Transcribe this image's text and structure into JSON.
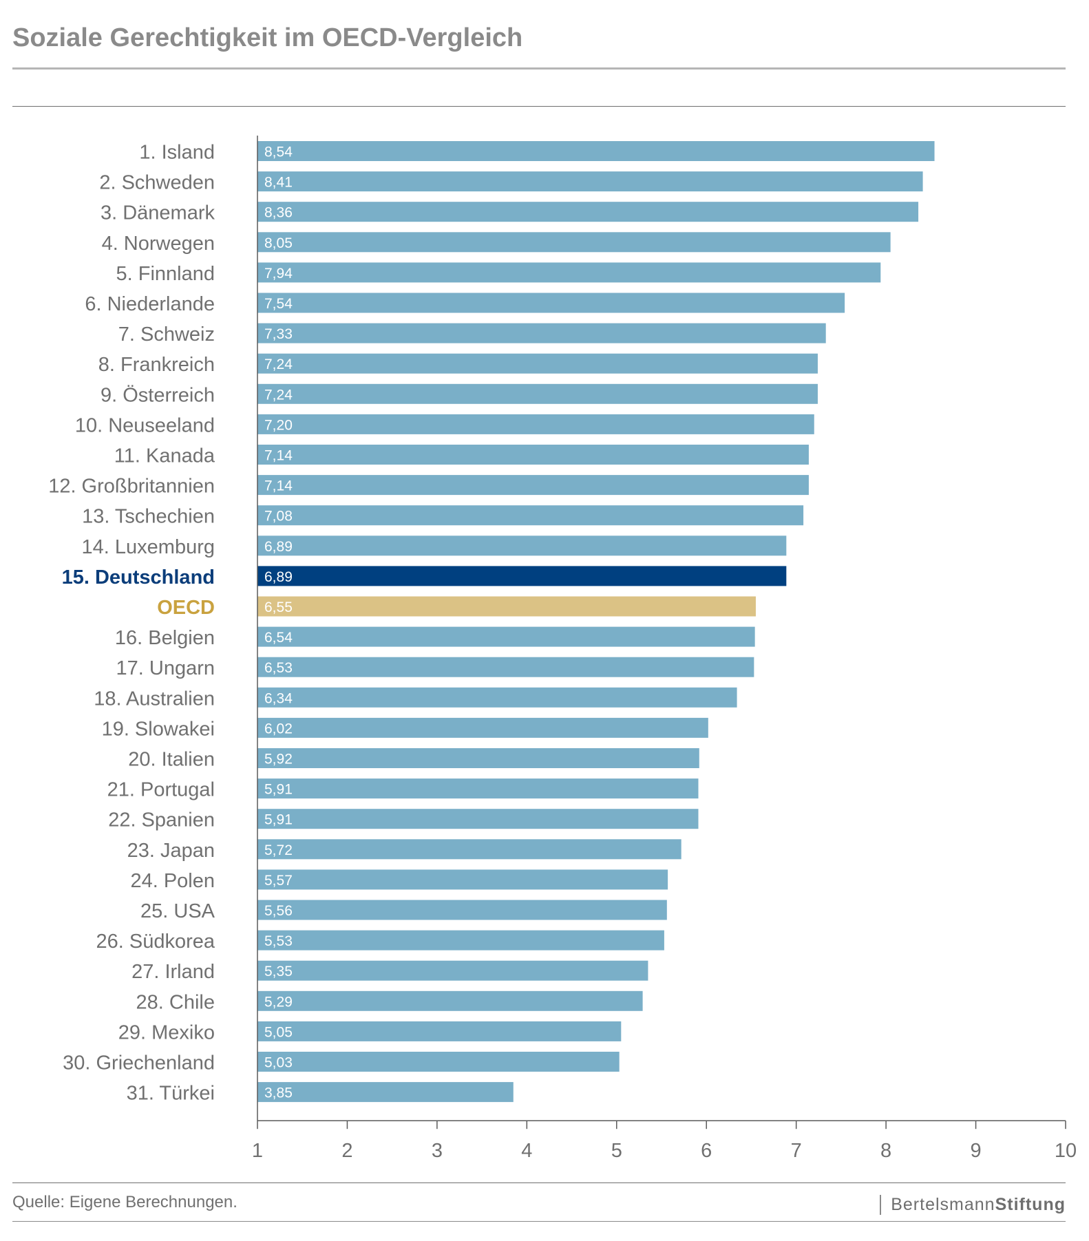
{
  "header": {
    "title": "Soziale Gerechtigkeit im OECD-Vergleich"
  },
  "footer": {
    "source": "Quelle: Eigene Berechnungen.",
    "brand_light": "Bertelsmann",
    "brand_bold": "Stiftung"
  },
  "colors": {
    "bar": "#7aafc8",
    "highlight": "#004080",
    "oecd": "#dbc285",
    "label": "#707070",
    "highlight_label": "#0b3d7a",
    "oecd_label": "#c9a23f"
  },
  "chart_data": {
    "type": "bar",
    "orientation": "horizontal",
    "title": "",
    "xlim": [
      1,
      10
    ],
    "xticks": [
      "1",
      "2",
      "3",
      "4",
      "5",
      "6",
      "7",
      "8",
      "9",
      "10"
    ],
    "grid": false,
    "categories": [
      "1. Island",
      "2. Schweden",
      "3. Dänemark",
      "4. Norwegen",
      "5. Finnland",
      "6. Niederlande",
      "7. Schweiz",
      "8. Frankreich",
      "9. Österreich",
      "10. Neuseeland",
      "11. Kanada",
      "12. Großbritannien",
      "13. Tschechien",
      "14. Luxemburg",
      "15. Deutschland",
      "OECD",
      "16. Belgien",
      "17. Ungarn",
      "18. Australien",
      "19. Slowakei",
      "20. Italien",
      "21. Portugal",
      "22. Spanien",
      "23. Japan",
      "24. Polen",
      "25. USA",
      "26. Südkorea",
      "27. Irland",
      "28. Chile",
      "29. Mexiko",
      "30. Griechenland",
      "31. Türkei"
    ],
    "values": [
      8.54,
      8.41,
      8.36,
      8.05,
      7.94,
      7.54,
      7.33,
      7.24,
      7.24,
      7.2,
      7.14,
      7.14,
      7.08,
      6.89,
      6.89,
      6.55,
      6.54,
      6.53,
      6.34,
      6.02,
      5.92,
      5.91,
      5.91,
      5.72,
      5.57,
      5.56,
      5.53,
      5.35,
      5.29,
      5.05,
      5.03,
      3.85
    ],
    "value_labels": [
      "8,54",
      "8,41",
      "8,36",
      "8,05",
      "7,94",
      "7,54",
      "7,33",
      "7,24",
      "7,24",
      "7,20",
      "7,14",
      "7,14",
      "7,08",
      "6,89",
      "6,89",
      "6,55",
      "6,54",
      "6,53",
      "6,34",
      "6,02",
      "5,92",
      "5,91",
      "5,91",
      "5,72",
      "5,57",
      "5,56",
      "5,53",
      "5,35",
      "5,29",
      "5,05",
      "5,03",
      "3,85"
    ],
    "highlight": "15. Deutschland",
    "reference": "OECD"
  }
}
